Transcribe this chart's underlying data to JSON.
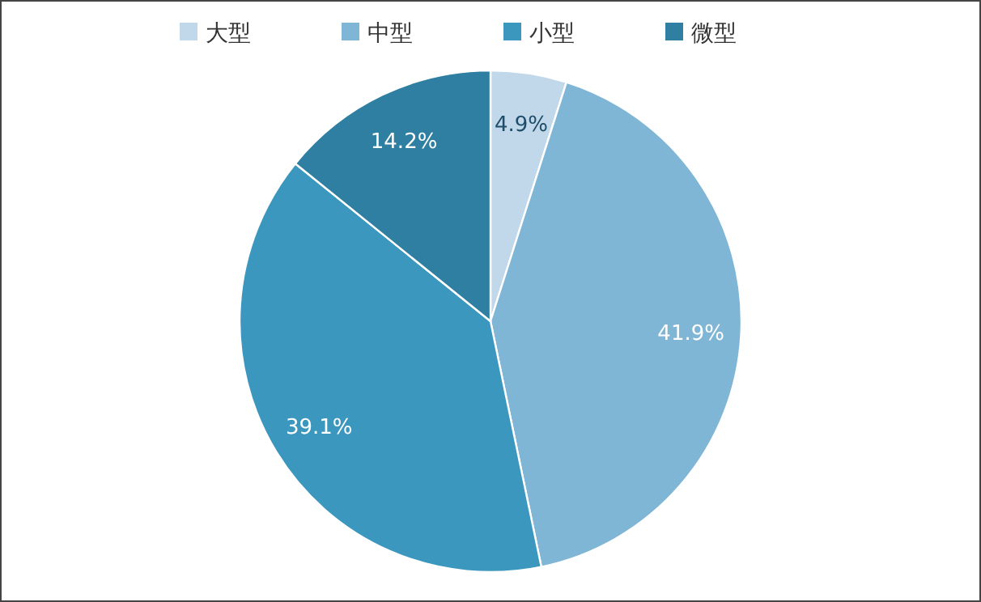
{
  "chart_data": {
    "type": "pie",
    "categories": [
      "大型",
      "中型",
      "小型",
      "微型"
    ],
    "values": [
      4.9,
      41.9,
      39.1,
      14.2
    ],
    "colors": [
      "#c1d7ea",
      "#7fb5d5",
      "#3b97bd",
      "#2e7fa1"
    ],
    "legend": "top",
    "value_labels": [
      "4.9%",
      "41.9%",
      "39.1%",
      "14.2%"
    ]
  }
}
